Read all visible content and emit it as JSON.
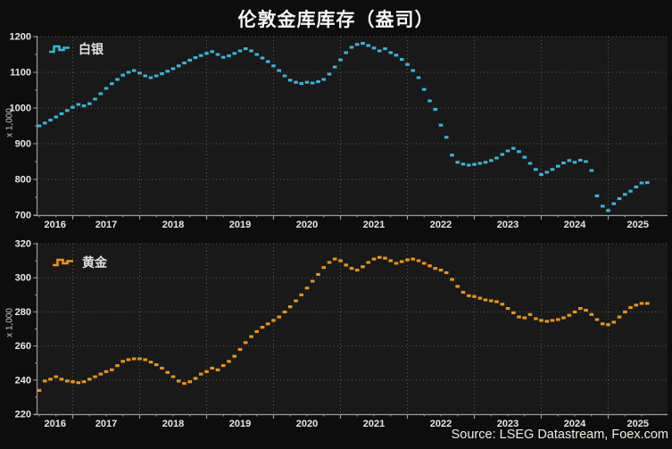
{
  "title": "伦敦金库库存（盎司）",
  "source": "Source: LSEG Datastream, Foex.com",
  "colors": {
    "background": "#0d0d0d",
    "panel": "#191919",
    "grid": "#5a5a5a",
    "axis": "#9a9a9a",
    "tick_text": "#e8e8e8",
    "silver": "#36b6de",
    "gold": "#ec9414"
  },
  "chart_data": [
    {
      "type": "line",
      "marker_style": "horizontal-dash",
      "series_name": "白银",
      "unit_label": "x 1,000",
      "color": "#36b6de",
      "start": "2016-07",
      "frequency": "monthly",
      "x_tick_labels": [
        "2016",
        "2017",
        "2018",
        "2019",
        "2020",
        "2021",
        "2022",
        "2023",
        "2024",
        "2025"
      ],
      "ylim": [
        700,
        1200
      ],
      "yticks": [
        1200,
        1100,
        1000,
        900,
        800,
        700
      ],
      "grid": "dotted",
      "legend_position": "top-left",
      "values": [
        950,
        958,
        966,
        975,
        984,
        993,
        1002,
        1010,
        1006,
        1012,
        1025,
        1040,
        1055,
        1068,
        1080,
        1092,
        1100,
        1105,
        1098,
        1090,
        1085,
        1090,
        1096,
        1103,
        1110,
        1118,
        1126,
        1134,
        1141,
        1147,
        1153,
        1158,
        1150,
        1142,
        1146,
        1153,
        1160,
        1166,
        1160,
        1150,
        1140,
        1130,
        1118,
        1105,
        1090,
        1078,
        1072,
        1069,
        1072,
        1070,
        1074,
        1080,
        1095,
        1115,
        1135,
        1155,
        1170,
        1178,
        1181,
        1175,
        1168,
        1160,
        1166,
        1155,
        1148,
        1136,
        1122,
        1105,
        1085,
        1052,
        1020,
        996,
        952,
        918,
        868,
        848,
        843,
        840,
        842,
        845,
        848,
        853,
        860,
        870,
        880,
        887,
        878,
        862,
        845,
        828,
        814,
        820,
        828,
        837,
        846,
        853,
        848,
        854,
        850,
        825,
        754,
        725,
        713,
        732,
        746,
        758,
        767,
        779,
        790,
        791
      ]
    },
    {
      "type": "line",
      "marker_style": "horizontal-dash",
      "series_name": "黄金",
      "unit_label": "x 1,000",
      "color": "#ec9414",
      "start": "2016-07",
      "frequency": "monthly",
      "x_tick_labels": [
        "2016",
        "2017",
        "2018",
        "2019",
        "2020",
        "2021",
        "2022",
        "2023",
        "2024",
        "2025"
      ],
      "ylim": [
        220,
        320
      ],
      "yticks": [
        320,
        300,
        280,
        260,
        240,
        220
      ],
      "grid": "dotted",
      "legend_position": "top-left",
      "values": [
        234,
        239.5,
        240.5,
        242,
        240.5,
        239.5,
        239,
        238.5,
        239,
        240.5,
        242,
        243.5,
        245,
        246,
        248.5,
        251,
        252,
        252.5,
        252.5,
        252,
        250.5,
        249,
        247,
        244.5,
        242,
        239.5,
        238,
        239,
        241,
        243.5,
        245,
        247,
        246,
        248.5,
        251,
        254,
        258,
        262,
        265.5,
        268.5,
        271,
        273,
        275,
        277,
        280,
        283,
        286.5,
        290,
        294,
        298,
        302,
        306,
        309,
        311,
        310,
        307.5,
        305.5,
        304.5,
        306.5,
        309,
        311,
        312,
        311.5,
        310,
        308.5,
        309.5,
        310.5,
        311,
        310,
        308.5,
        307,
        305.5,
        304.5,
        303,
        299,
        295,
        291.5,
        289.5,
        289,
        288,
        287,
        286.5,
        286,
        284.5,
        282,
        279.5,
        277,
        276.5,
        278.5,
        276,
        275,
        274.5,
        275,
        275.5,
        276.5,
        278,
        280,
        282,
        281,
        278.5,
        275.5,
        273,
        272.5,
        274,
        277,
        280,
        282.5,
        284,
        285,
        285
      ]
    }
  ]
}
